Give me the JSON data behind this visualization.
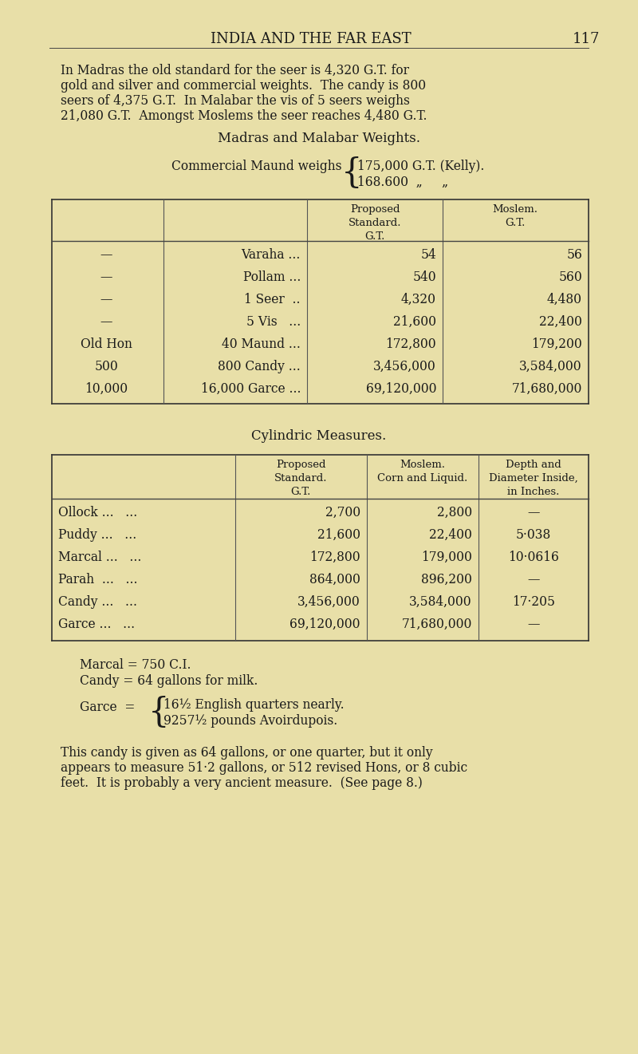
{
  "bg_color": "#e8dfa8",
  "text_color": "#1a1a1a",
  "page_title": "INDIA AND THE FAR EAST",
  "page_number": "117",
  "intro_lines": [
    "In Madras the old standard for the seer is 4,320 G.T. for",
    "gold and silver and commercial weights.  The candy is 800",
    "seers of 4,375 G.T.  In Malabar the vis of 5 seers weighs",
    "21,080 G.T.  Amongst Moslems the seer reaches 4,480 G.T."
  ],
  "section1_title": "Madras and Malabar Weights.",
  "commercial_maund_label": "Commercial Maund weighs",
  "commercial_maund_line1": "175,000 G.T. (Kelly).",
  "commercial_maund_line2": "168.600  „     „",
  "table1_rows": [
    [
      "—",
      "Varaha ...",
      "54",
      "56"
    ],
    [
      "—",
      "Pollam ...",
      "540",
      "560"
    ],
    [
      "—",
      "1 Seer  ..",
      "4,320",
      "4,480"
    ],
    [
      "—",
      "5 Vis   ...",
      "21,600",
      "22,400"
    ],
    [
      "Old Hon",
      "40 Maund ...",
      "172,800",
      "179,200"
    ],
    [
      "500",
      "800 Candy ...",
      "3,456,000",
      "3,584,000"
    ],
    [
      "10,000",
      "16,000 Garce ...",
      "69,120,000",
      "71,680,000"
    ]
  ],
  "section2_title": "Cylindric Measures.",
  "table2_rows": [
    [
      "Ollock ...   ...",
      "2,700",
      "2,800",
      "—"
    ],
    [
      "Puddy ...   ...",
      "21,600",
      "22,400",
      "5·038"
    ],
    [
      "Marcal ...   ...",
      "172,800",
      "179,000",
      "10·0616"
    ],
    [
      "Parah  ...   ...",
      "864,000",
      "896,200",
      "—"
    ],
    [
      "Candy ...   ...",
      "3,456,000",
      "3,584,000",
      "17·205"
    ],
    [
      "Garce ...   ...",
      "69,120,000",
      "71,680,000",
      "—"
    ]
  ],
  "footnote1": "Marcal = 750 C.I.",
  "footnote2": "Candy = 64 gallons for milk.",
  "garce_label": "Garce  =",
  "garce_line1": "16½ English quarters nearly.",
  "garce_line2": "9257½ pounds Avoirdupois.",
  "final_para_lines": [
    "This candy is given as 64 gallons, or one quarter, but it only",
    "appears to measure 51·2 gallons, or 512 revised Hons, or 8 cubic",
    "feet.  It is probably a very ancient measure.  (See page 8.)"
  ]
}
